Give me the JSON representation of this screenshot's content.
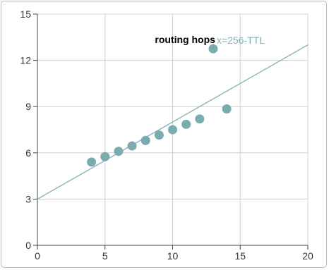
{
  "chart_data": {
    "type": "scatter",
    "title": "",
    "xlabel": "",
    "ylabel": "",
    "xlim": [
      0,
      20
    ],
    "ylim": [
      0,
      15
    ],
    "xticks": [
      0,
      5,
      10,
      15,
      20
    ],
    "yticks": [
      0,
      3,
      6,
      9,
      12,
      15
    ],
    "xtick_labels": [
      "0",
      "5",
      "10",
      "15",
      "20"
    ],
    "ytick_labels": [
      "0",
      "3",
      "6",
      "9",
      "12",
      "15"
    ],
    "grid": true,
    "series": [
      {
        "name": "routing hops",
        "color": "#7aabaf",
        "x": [
          4,
          5,
          6,
          7,
          8,
          9,
          10,
          11,
          12,
          13,
          14
        ],
        "y": [
          5.4,
          5.75,
          6.1,
          6.45,
          6.8,
          7.15,
          7.5,
          7.85,
          8.2,
          12.75,
          8.85
        ]
      }
    ],
    "fit_line": {
      "label": "x=256-TTL",
      "color": "#7fb0b8",
      "x": [
        0,
        20
      ],
      "y": [
        3,
        13
      ]
    }
  }
}
